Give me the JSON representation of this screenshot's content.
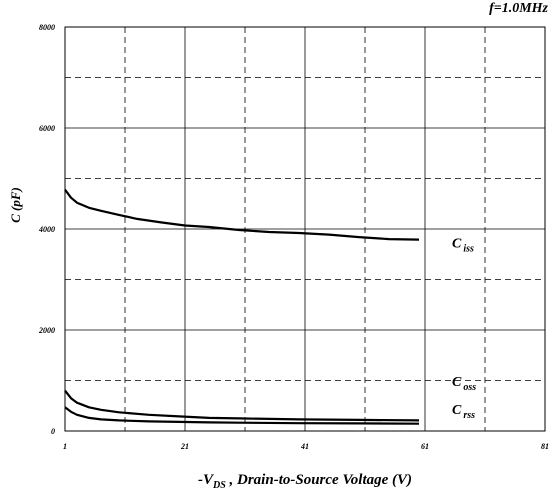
{
  "chart_data": {
    "type": "line",
    "annotation": "f=1.0MHz",
    "ylabel": "C (pF)",
    "xlabel": {
      "prefix": "-V",
      "sub": "DS",
      "rest": " , Drain-to-Source Voltage (V)"
    },
    "xlim": [
      1,
      81
    ],
    "ylim": [
      0,
      8000
    ],
    "x_ticks": [
      1,
      21,
      41,
      61,
      81
    ],
    "y_ticks": [
      0,
      2000,
      4000,
      6000,
      8000
    ],
    "x_ticks_dashed": [
      11,
      31,
      51,
      71
    ],
    "y_ticks_dashed": [
      1000,
      3000,
      5000,
      7000
    ],
    "grid": true,
    "series": [
      {
        "name": "Ciss",
        "label": {
          "main": "C",
          "sub": "iss"
        },
        "x": [
          1,
          2,
          3,
          5,
          7,
          10,
          13,
          17,
          21,
          25,
          30,
          35,
          40,
          45,
          50,
          55,
          60
        ],
        "y": [
          4780,
          4620,
          4520,
          4420,
          4360,
          4280,
          4200,
          4130,
          4070,
          4040,
          3980,
          3940,
          3920,
          3890,
          3840,
          3800,
          3790
        ]
      },
      {
        "name": "Coss",
        "label": {
          "main": "C",
          "sub": "oss"
        },
        "x": [
          1,
          2,
          3,
          5,
          7,
          10,
          15,
          20,
          25,
          30,
          40,
          50,
          60
        ],
        "y": [
          800,
          650,
          560,
          470,
          420,
          370,
          320,
          290,
          260,
          250,
          230,
          220,
          210
        ]
      },
      {
        "name": "Crss",
        "label": {
          "main": "C",
          "sub": "rss"
        },
        "x": [
          1,
          2,
          3,
          5,
          7,
          10,
          15,
          20,
          25,
          30,
          40,
          50,
          60
        ],
        "y": [
          470,
          380,
          320,
          260,
          230,
          210,
          190,
          180,
          170,
          165,
          155,
          150,
          145
        ]
      }
    ]
  }
}
